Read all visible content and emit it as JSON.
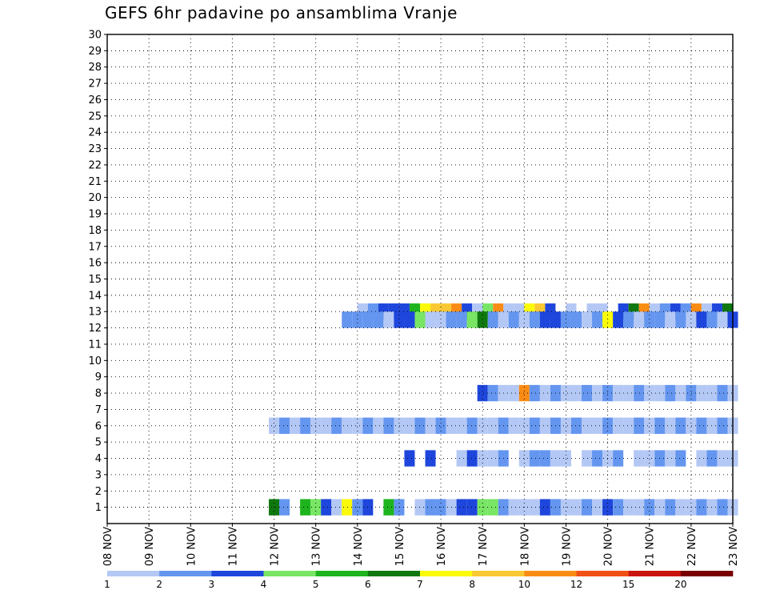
{
  "chart_data": {
    "type": "heatmap",
    "title": "GEFS 6hr padavine po ansamblima Vranje",
    "xlabel": "",
    "ylabel": "",
    "x_tick_labels": [
      "08 NOV",
      "09 NOV",
      "10 NOV",
      "11 NOV",
      "12 NOV",
      "13 NOV",
      "14 NOV",
      "15 NOV",
      "16 NOV",
      "17 NOV",
      "18 NOV",
      "19 NOV",
      "20 NOV",
      "21 NOV",
      "22 NOV",
      "23 NOV"
    ],
    "y_tick_labels": [
      "1",
      "2",
      "3",
      "4",
      "5",
      "6",
      "7",
      "8",
      "9",
      "10",
      "11",
      "12",
      "13",
      "14",
      "15",
      "16",
      "17",
      "18",
      "19",
      "20",
      "21",
      "22",
      "23",
      "24",
      "25",
      "26",
      "27",
      "28",
      "29",
      "30"
    ],
    "xlim_steps": [
      0,
      60
    ],
    "step_hours": 6,
    "ylim": [
      0,
      30
    ],
    "grid": true,
    "color_scale": {
      "boundaries": [
        "1",
        "2",
        "3",
        "4",
        "5",
        "6",
        "7",
        "8",
        "10",
        "12",
        "15",
        "20"
      ],
      "colors": [
        "#b4c8f5",
        "#6496f0",
        "#1e46dc",
        "#78e664",
        "#1eb41e",
        "#0f780f",
        "#fafa0a",
        "#fac832",
        "#fa8c14",
        "#f05014",
        "#c8140a",
        "#780000"
      ]
    },
    "cells": [
      [
        0,
        24.5,
        13
      ],
      [
        1,
        25.5,
        13
      ],
      [
        2,
        26.5,
        13
      ],
      [
        2,
        27.5,
        13
      ],
      [
        2,
        28.5,
        13
      ],
      [
        4,
        29.5,
        13
      ],
      [
        6,
        30.5,
        13
      ],
      [
        7,
        31.5,
        13
      ],
      [
        7,
        32.5,
        13
      ],
      [
        8,
        33.5,
        13
      ],
      [
        2,
        34.5,
        13
      ],
      [
        0,
        35.5,
        13
      ],
      [
        3,
        36.5,
        13
      ],
      [
        8,
        37.5,
        13
      ],
      [
        0,
        38.5,
        13
      ],
      [
        0,
        39.5,
        13
      ],
      [
        6,
        40.5,
        13
      ],
      [
        7,
        41.5,
        13
      ],
      [
        2,
        42.5,
        13
      ],
      [
        0,
        44.5,
        13
      ],
      [
        0,
        46.5,
        13
      ],
      [
        0,
        47.5,
        13
      ],
      [
        2,
        49.5,
        13
      ],
      [
        5,
        50.5,
        13
      ],
      [
        8,
        51.5,
        13
      ],
      [
        0,
        52.5,
        13
      ],
      [
        1,
        53.5,
        13
      ],
      [
        2,
        54.5,
        13
      ],
      [
        1,
        55.5,
        13
      ],
      [
        8,
        56.5,
        13
      ],
      [
        0,
        57.5,
        13
      ],
      [
        2,
        58.5,
        13
      ],
      [
        5,
        59.5,
        13
      ],
      [
        1,
        23,
        12.5
      ],
      [
        1,
        24,
        12.5
      ],
      [
        1,
        25,
        12.5
      ],
      [
        1,
        26,
        12.5
      ],
      [
        0,
        27,
        12.5
      ],
      [
        2,
        28,
        12.5
      ],
      [
        2,
        29,
        12.5
      ],
      [
        3,
        30,
        12.5
      ],
      [
        0,
        31,
        12.5
      ],
      [
        0,
        32,
        12.5
      ],
      [
        1,
        33,
        12.5
      ],
      [
        1,
        34,
        12.5
      ],
      [
        3,
        35,
        12.5
      ],
      [
        5,
        36,
        12.5
      ],
      [
        1,
        37,
        12.5
      ],
      [
        0,
        38,
        12.5
      ],
      [
        1,
        39,
        12.5
      ],
      [
        0,
        40,
        12.5
      ],
      [
        1,
        41,
        12.5
      ],
      [
        2,
        42,
        12.5
      ],
      [
        2,
        43,
        12.5
      ],
      [
        1,
        44,
        12.5
      ],
      [
        1,
        45,
        12.5
      ],
      [
        0,
        46,
        12.5
      ],
      [
        1,
        47,
        12.5
      ],
      [
        6,
        48,
        12.5
      ],
      [
        2,
        49,
        12.5
      ],
      [
        1,
        50,
        12.5
      ],
      [
        0,
        51,
        12.5
      ],
      [
        1,
        52,
        12.5
      ],
      [
        1,
        53,
        12.5
      ],
      [
        0,
        54,
        12.5
      ],
      [
        1,
        55,
        12.5
      ],
      [
        0,
        56,
        12.5
      ],
      [
        2,
        57,
        12.5
      ],
      [
        1,
        58,
        12.5
      ],
      [
        0,
        59,
        12.5
      ],
      [
        2,
        60,
        12.5
      ],
      [
        5,
        16,
        1
      ],
      [
        1,
        17,
        1
      ],
      [
        4,
        19,
        1
      ],
      [
        3,
        20,
        1
      ],
      [
        2,
        21,
        1
      ],
      [
        0,
        22,
        1
      ],
      [
        6,
        23,
        1
      ],
      [
        1,
        24,
        1
      ],
      [
        2,
        25,
        1
      ],
      [
        4,
        27,
        1
      ],
      [
        1,
        28,
        1
      ],
      [
        0,
        30,
        1
      ],
      [
        1,
        31,
        1
      ],
      [
        1,
        32,
        1
      ],
      [
        0,
        33,
        1
      ],
      [
        2,
        34,
        1
      ],
      [
        2,
        35,
        1
      ],
      [
        3,
        36,
        1
      ],
      [
        3,
        37,
        1
      ],
      [
        1,
        38,
        1
      ],
      [
        0,
        39,
        1
      ],
      [
        0,
        40,
        1
      ],
      [
        0,
        41,
        1
      ],
      [
        2,
        42,
        1
      ],
      [
        1,
        43,
        1
      ],
      [
        0,
        44,
        1
      ],
      [
        0,
        45,
        1
      ],
      [
        1,
        46,
        1
      ],
      [
        0,
        47,
        1
      ],
      [
        2,
        48,
        1
      ],
      [
        1,
        49,
        1
      ],
      [
        0,
        50,
        1
      ],
      [
        0,
        51,
        1
      ],
      [
        1,
        52,
        1
      ],
      [
        0,
        53,
        1
      ],
      [
        1,
        54,
        1
      ],
      [
        0,
        55,
        1
      ],
      [
        0,
        56,
        1
      ],
      [
        1,
        57,
        1
      ],
      [
        0,
        58,
        1
      ],
      [
        1,
        59,
        1
      ],
      [
        0,
        60,
        1
      ],
      [
        2,
        29,
        4
      ],
      [
        2,
        31,
        4
      ],
      [
        0,
        34,
        4
      ],
      [
        2,
        35,
        4
      ],
      [
        0,
        36,
        4
      ],
      [
        0,
        37,
        4
      ],
      [
        1,
        38,
        4
      ],
      [
        0,
        40,
        4
      ],
      [
        1,
        41,
        4
      ],
      [
        1,
        42,
        4
      ],
      [
        0,
        43,
        4
      ],
      [
        0,
        44,
        4
      ],
      [
        0,
        46,
        4
      ],
      [
        1,
        47,
        4
      ],
      [
        0,
        48,
        4
      ],
      [
        1,
        49,
        4
      ],
      [
        0,
        51,
        4
      ],
      [
        0,
        52,
        4
      ],
      [
        1,
        53,
        4
      ],
      [
        0,
        54,
        4
      ],
      [
        1,
        55,
        4
      ],
      [
        0,
        57,
        4
      ],
      [
        1,
        58,
        4
      ],
      [
        0,
        59,
        4
      ],
      [
        0,
        60,
        4
      ],
      [
        2,
        36,
        8
      ],
      [
        1,
        37,
        8
      ],
      [
        0,
        38,
        8
      ],
      [
        0,
        39,
        8
      ],
      [
        8,
        40,
        8
      ],
      [
        1,
        41,
        8
      ],
      [
        0,
        42,
        8
      ],
      [
        1,
        43,
        8
      ],
      [
        0,
        44,
        8
      ],
      [
        0,
        45,
        8
      ],
      [
        1,
        46,
        8
      ],
      [
        0,
        47,
        8
      ],
      [
        1,
        48,
        8
      ],
      [
        0,
        49,
        8
      ],
      [
        0,
        50,
        8
      ],
      [
        1,
        51,
        8
      ],
      [
        0,
        52,
        8
      ],
      [
        0,
        53,
        8
      ],
      [
        1,
        54,
        8
      ],
      [
        0,
        55,
        8
      ],
      [
        1,
        56,
        8
      ],
      [
        0,
        57,
        8
      ],
      [
        0,
        58,
        8
      ],
      [
        1,
        59,
        8
      ],
      [
        0,
        60,
        8
      ],
      [
        0,
        16,
        6
      ],
      [
        1,
        17,
        6
      ],
      [
        0,
        18,
        6
      ],
      [
        1,
        19,
        6
      ],
      [
        0,
        20,
        6
      ],
      [
        0,
        21,
        6
      ],
      [
        1,
        22,
        6
      ],
      [
        0,
        23,
        6
      ],
      [
        0,
        24,
        6
      ],
      [
        1,
        25,
        6
      ],
      [
        0,
        26,
        6
      ],
      [
        1,
        27,
        6
      ],
      [
        0,
        28,
        6
      ],
      [
        0,
        29,
        6
      ],
      [
        1,
        30,
        6
      ],
      [
        0,
        31,
        6
      ],
      [
        1,
        32,
        6
      ],
      [
        0,
        33,
        6
      ],
      [
        0,
        34,
        6
      ],
      [
        1,
        35,
        6
      ],
      [
        0,
        36,
        6
      ],
      [
        0,
        37,
        6
      ],
      [
        1,
        38,
        6
      ],
      [
        0,
        39,
        6
      ],
      [
        0,
        40,
        6
      ],
      [
        1,
        41,
        6
      ],
      [
        0,
        42,
        6
      ],
      [
        1,
        43,
        6
      ],
      [
        0,
        44,
        6
      ],
      [
        1,
        45,
        6
      ],
      [
        0,
        46,
        6
      ],
      [
        0,
        47,
        6
      ],
      [
        1,
        48,
        6
      ],
      [
        0,
        49,
        6
      ],
      [
        0,
        50,
        6
      ],
      [
        1,
        51,
        6
      ],
      [
        0,
        52,
        6
      ],
      [
        1,
        53,
        6
      ],
      [
        0,
        54,
        6
      ],
      [
        1,
        55,
        6
      ],
      [
        0,
        56,
        6
      ],
      [
        1,
        57,
        6
      ],
      [
        0,
        58,
        6
      ],
      [
        1,
        59,
        6
      ],
      [
        0,
        60,
        6
      ]
    ]
  }
}
